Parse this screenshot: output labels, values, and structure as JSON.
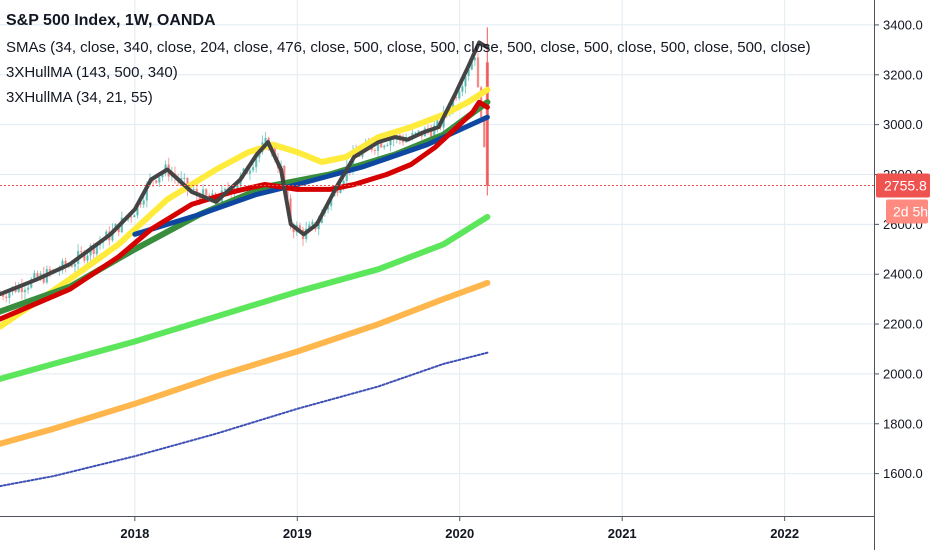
{
  "legend": {
    "title": "S&P 500 Index, 1W, OANDA",
    "line1": "SMAs (34, close, 340, close, 204, close, 476, close, 500, close, 500, close, 500, close, 500, close, 500, close, 500, close)",
    "line2": "3XHullMA (143, 500, 340)",
    "line3": "3XHullMA (34, 21, 55)"
  },
  "chart_data": {
    "type": "line",
    "y_ticks": [
      1600,
      1800,
      2000,
      2200,
      2400,
      2600,
      2800,
      3000,
      3200,
      3400
    ],
    "y_tick_labels": [
      "1600.0",
      "1800.0",
      "2000.0",
      "2200.0",
      "2400.0",
      "2600.0",
      "2800.0",
      "3000.0",
      "3200.0",
      "3400.0"
    ],
    "ylim": [
      1430,
      3500
    ],
    "xlim": [
      2017.17,
      2022.55
    ],
    "x_ticks": [
      2018,
      2019,
      2020,
      2021,
      2022
    ],
    "x_tick_labels": [
      "2018",
      "2019",
      "2020",
      "2021",
      "2022"
    ],
    "grid": true,
    "last_price": {
      "value": 2755.8,
      "label": "2755.8",
      "countdown": "2d 5h",
      "color": "#ef5350"
    },
    "series": [
      {
        "color": "#444444",
        "points": [
          [
            2017.17,
            2320
          ],
          [
            2017.4,
            2380
          ],
          [
            2017.6,
            2440
          ],
          [
            2017.85,
            2560
          ],
          [
            2018.0,
            2660
          ],
          [
            2018.1,
            2780
          ],
          [
            2018.2,
            2820
          ],
          [
            2018.35,
            2730
          ],
          [
            2018.5,
            2690
          ],
          [
            2018.65,
            2780
          ],
          [
            2018.75,
            2880
          ],
          [
            2018.82,
            2930
          ],
          [
            2018.9,
            2820
          ],
          [
            2018.96,
            2600
          ],
          [
            2019.04,
            2560
          ],
          [
            2019.12,
            2600
          ],
          [
            2019.25,
            2760
          ],
          [
            2019.35,
            2870
          ],
          [
            2019.5,
            2930
          ],
          [
            2019.6,
            2950
          ],
          [
            2019.68,
            2940
          ],
          [
            2019.78,
            2970
          ],
          [
            2019.87,
            2990
          ],
          [
            2019.97,
            3120
          ],
          [
            2020.05,
            3230
          ],
          [
            2020.12,
            3330
          ],
          [
            2020.17,
            3310
          ]
        ]
      },
      {
        "color": "#ffeb3b",
        "points": [
          [
            2017.17,
            2190
          ],
          [
            2017.6,
            2380
          ],
          [
            2017.9,
            2520
          ],
          [
            2018.2,
            2700
          ],
          [
            2018.5,
            2820
          ],
          [
            2018.7,
            2890
          ],
          [
            2018.85,
            2920
          ],
          [
            2019.0,
            2890
          ],
          [
            2019.15,
            2850
          ],
          [
            2019.3,
            2870
          ],
          [
            2019.5,
            2950
          ],
          [
            2019.7,
            2990
          ],
          [
            2019.9,
            3040
          ],
          [
            2020.05,
            3090
          ],
          [
            2020.17,
            3140
          ]
        ]
      },
      {
        "color": "#388e3c",
        "points": [
          [
            2017.17,
            2250
          ],
          [
            2017.6,
            2350
          ],
          [
            2018.0,
            2500
          ],
          [
            2018.4,
            2640
          ],
          [
            2018.8,
            2750
          ],
          [
            2019.2,
            2800
          ],
          [
            2019.6,
            2880
          ],
          [
            2019.9,
            2960
          ],
          [
            2020.17,
            3090
          ]
        ]
      },
      {
        "color": "#0d47a1",
        "points": [
          [
            2018.0,
            2560
          ],
          [
            2018.4,
            2640
          ],
          [
            2018.75,
            2720
          ],
          [
            2019.0,
            2760
          ],
          [
            2019.4,
            2830
          ],
          [
            2019.8,
            2920
          ],
          [
            2020.17,
            3030
          ]
        ]
      },
      {
        "color": "#d50000",
        "points": [
          [
            2017.17,
            2220
          ],
          [
            2017.6,
            2340
          ],
          [
            2017.9,
            2470
          ],
          [
            2018.1,
            2580
          ],
          [
            2018.35,
            2680
          ],
          [
            2018.6,
            2730
          ],
          [
            2018.8,
            2760
          ],
          [
            2019.0,
            2740
          ],
          [
            2019.2,
            2740
          ],
          [
            2019.35,
            2760
          ],
          [
            2019.55,
            2800
          ],
          [
            2019.7,
            2840
          ],
          [
            2019.85,
            2910
          ],
          [
            2020.0,
            3000
          ],
          [
            2020.08,
            3050
          ],
          [
            2020.12,
            3090
          ],
          [
            2020.17,
            3070
          ]
        ]
      },
      {
        "color": "#5ce65c",
        "points": [
          [
            2017.17,
            1980
          ],
          [
            2017.5,
            2040
          ],
          [
            2018.0,
            2130
          ],
          [
            2018.5,
            2230
          ],
          [
            2019.0,
            2330
          ],
          [
            2019.5,
            2420
          ],
          [
            2019.9,
            2520
          ],
          [
            2020.17,
            2630
          ]
        ]
      },
      {
        "color": "#ffb74d",
        "points": [
          [
            2017.17,
            1720
          ],
          [
            2017.5,
            1780
          ],
          [
            2018.0,
            1880
          ],
          [
            2018.5,
            1990
          ],
          [
            2019.0,
            2090
          ],
          [
            2019.5,
            2200
          ],
          [
            2019.9,
            2300
          ],
          [
            2020.17,
            2365
          ]
        ]
      },
      {
        "color": "#3f51b5",
        "points": [
          [
            2017.17,
            1550
          ],
          [
            2017.5,
            1590
          ],
          [
            2018.0,
            1670
          ],
          [
            2018.5,
            1760
          ],
          [
            2019.0,
            1860
          ],
          [
            2019.5,
            1950
          ],
          [
            2019.9,
            2040
          ],
          [
            2020.17,
            2085
          ]
        ]
      }
    ]
  }
}
